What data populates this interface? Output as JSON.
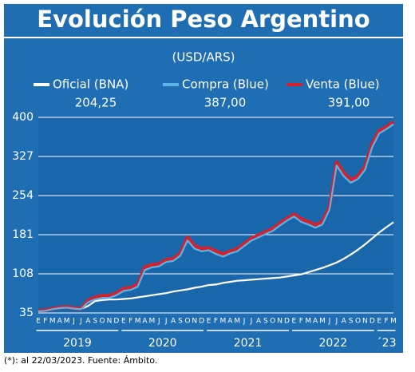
{
  "chart_data": {
    "type": "line",
    "title": "Evolución Peso Argentino",
    "subtitle": "(USD/ARS)",
    "categories": [
      "E",
      "F",
      "M",
      "A",
      "M",
      "J",
      "J",
      "A",
      "S",
      "O",
      "N",
      "D",
      "E",
      "F",
      "M",
      "A",
      "M",
      "J",
      "J",
      "A",
      "S",
      "O",
      "N",
      "D",
      "E",
      "F",
      "M",
      "A",
      "M",
      "J",
      "J",
      "A",
      "S",
      "O",
      "N",
      "D",
      "E",
      "F",
      "M",
      "A",
      "M",
      "J",
      "J",
      "A",
      "S",
      "O",
      "N",
      "D",
      "E",
      "F",
      "M"
    ],
    "year_labels": [
      "2019",
      "2020",
      "2021",
      "2022",
      "´23"
    ],
    "series": [
      {
        "name": "Oficial (BNA)",
        "color": "#ffffff",
        "legend_value": "204,25",
        "values": [
          38,
          40,
          42,
          44,
          45,
          43,
          42,
          48,
          57,
          59,
          60,
          60,
          61,
          62,
          64,
          66,
          68,
          70,
          72,
          75,
          77,
          79,
          82,
          84,
          87,
          88,
          91,
          93,
          95,
          96,
          97,
          98,
          99,
          100,
          101,
          103,
          105,
          107,
          111,
          115,
          119,
          124,
          129,
          136,
          144,
          153,
          163,
          174,
          185,
          195,
          204.25
        ]
      },
      {
        "name": "Venta (Blue)",
        "color": "#d7202a",
        "legend_value": "391,00",
        "values": [
          39,
          40,
          43,
          45,
          46,
          44,
          43,
          58,
          64,
          67,
          67,
          72,
          80,
          82,
          88,
          120,
          125,
          126,
          134,
          136,
          146,
          176,
          160,
          155,
          156,
          150,
          145,
          150,
          154,
          164,
          174,
          180,
          186,
          192,
          202,
          211,
          219,
          210,
          205,
          199,
          205,
          233,
          316,
          296,
          283,
          290,
          308,
          350,
          375,
          382,
          391
        ]
      },
      {
        "name": "Compra (Blue)",
        "color": "#5ab4e8",
        "legend_value": "387,00",
        "values": [
          38,
          39,
          42,
          44,
          45,
          43,
          42,
          55,
          60,
          63,
          63,
          68,
          76,
          78,
          84,
          115,
          120,
          122,
          130,
          132,
          142,
          170,
          155,
          150,
          152,
          145,
          140,
          146,
          150,
          160,
          170,
          176,
          182,
          188,
          198,
          207,
          215,
          205,
          200,
          194,
          200,
          228,
          310,
          290,
          278,
          285,
          302,
          344,
          370,
          378,
          387
        ]
      }
    ],
    "ylim": [
      35,
      400
    ],
    "yticks": [
      35,
      108,
      181,
      254,
      327,
      400
    ],
    "grid": true,
    "footnote": "(*): al  22/03/2023. Fuente: Ámbito."
  }
}
